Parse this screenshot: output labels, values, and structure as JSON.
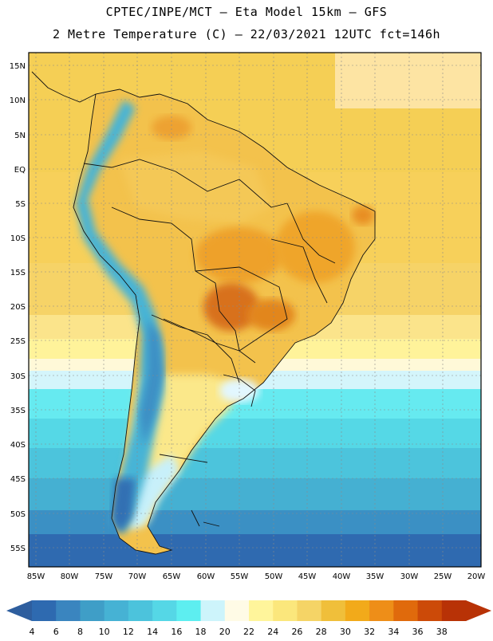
{
  "header": {
    "line1": "CPTEC/INPE/MCT –  Eta Model 15km – GFS",
    "line2": "2 Metre Temperature (C) – 22/03/2021 12UTC fct=146h"
  },
  "map": {
    "region": "South America",
    "lat_labels": [
      "15N",
      "10N",
      "5N",
      "EQ",
      "5S",
      "10S",
      "15S",
      "20S",
      "25S",
      "30S",
      "35S",
      "40S",
      "45S",
      "50S",
      "55S"
    ],
    "lon_labels": [
      "85W",
      "80W",
      "75W",
      "70W",
      "65W",
      "60W",
      "55W",
      "50W",
      "45W",
      "40W",
      "35W",
      "30W",
      "25W",
      "20W"
    ]
  },
  "colorbar": {
    "labels": [
      "4",
      "6",
      "8",
      "10",
      "12",
      "14",
      "16",
      "18",
      "20",
      "22",
      "24",
      "26",
      "28",
      "30",
      "32",
      "34",
      "36",
      "38"
    ],
    "colors": [
      "#2e6ab0",
      "#3a85bf",
      "#3f9ec7",
      "#46b2d4",
      "#4cc3dc",
      "#55d7e6",
      "#5deef0",
      "#cdf4fb",
      "#fffbe6",
      "#fff59b",
      "#fbe77c",
      "#f5d466",
      "#f0bf3a",
      "#f2aa1a",
      "#ee8e18",
      "#e06a0c",
      "#cc4a08",
      "#b83206"
    ],
    "low_color": "#2e5e9e",
    "high_color": "#b83206"
  }
}
